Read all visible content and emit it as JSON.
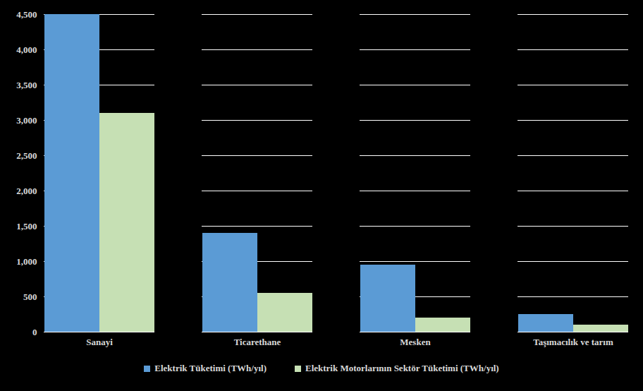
{
  "chart_data": {
    "type": "bar",
    "categories": [
      "Sanayi",
      "Ticarethane",
      "Mesken",
      "Taşımacılık ve tarım"
    ],
    "series": [
      {
        "name": "Elektrik Tüketimi (TWh/yıl)",
        "color": "#5B9BD5",
        "values": [
          4500,
          1400,
          950,
          250
        ]
      },
      {
        "name": "Elektrik Motorlarının Sektör Tüketimi (TWh/yıl)",
        "color": "#C6E0B4",
        "values": [
          3100,
          550,
          200,
          100
        ]
      }
    ],
    "ylim": [
      0,
      4500
    ],
    "yticks": [
      0,
      500,
      1000,
      1500,
      2000,
      2500,
      3000,
      3500,
      4000,
      4500
    ],
    "grid": true,
    "legend": "bottom"
  }
}
